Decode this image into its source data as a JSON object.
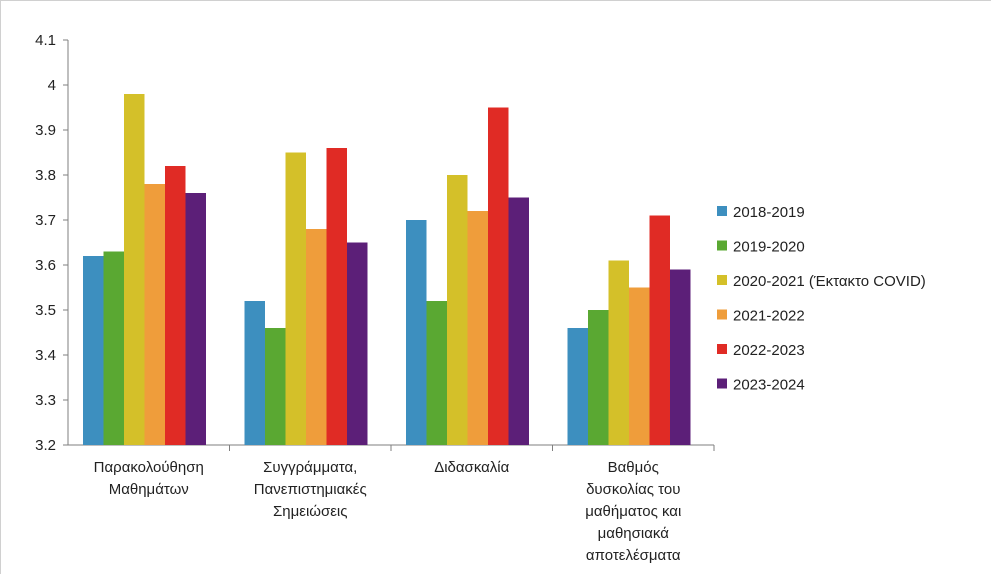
{
  "chart_data": {
    "type": "bar",
    "categories": [
      [
        "Παρακολούθηση",
        "Μαθημάτων"
      ],
      [
        "Συγγράμματα,",
        "Πανεπιστημιακές",
        "Σημειώσεις"
      ],
      [
        "Διδασκαλία"
      ],
      [
        "Βαθμός",
        "δυσκολίας του",
        "μαθήματος και",
        "μαθησιακά",
        "αποτελέσματα"
      ]
    ],
    "series": [
      {
        "name": "2018-2019",
        "color": "#3d8fbf",
        "values": [
          3.62,
          3.52,
          3.7,
          3.46
        ]
      },
      {
        "name": "2019-2020",
        "color": "#5aa832",
        "values": [
          3.63,
          3.46,
          3.52,
          3.5
        ]
      },
      {
        "name": "2020-2021  (Έκτακτο COVID)",
        "color": "#d4c029",
        "values": [
          3.98,
          3.85,
          3.8,
          3.61
        ]
      },
      {
        "name": "2021-2022",
        "color": "#ef9d3b",
        "values": [
          3.78,
          3.68,
          3.72,
          3.55
        ]
      },
      {
        "name": "2022-2023",
        "color": "#e02b25",
        "values": [
          3.82,
          3.86,
          3.95,
          3.71
        ]
      },
      {
        "name": "2023-2024",
        "color": "#5c1f78",
        "values": [
          3.76,
          3.65,
          3.75,
          3.59
        ]
      }
    ],
    "yticks": [
      "3.2",
      "3.3",
      "3.4",
      "3.5",
      "3.6",
      "3.7",
      "3.8",
      "3.9",
      "4",
      "4.1"
    ],
    "ylim": [
      3.2,
      4.1
    ],
    "grid": false,
    "legend": "right"
  }
}
